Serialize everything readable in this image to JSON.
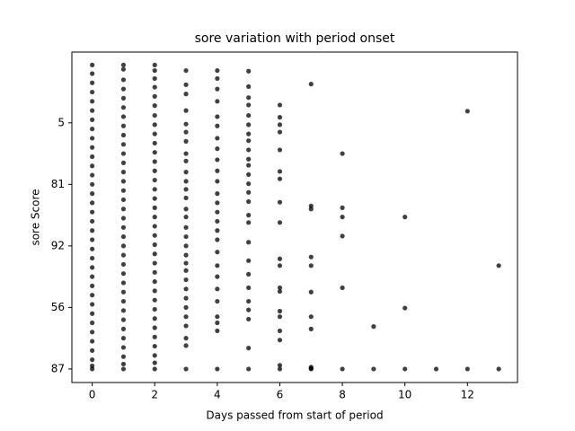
{
  "chart_data": {
    "type": "scatter",
    "title": "sore variation with period onset",
    "x_label": "Days passed from start of period",
    "y_label": "sore Score",
    "xlim": [
      -0.65,
      13.6
    ],
    "ylim": [
      -0.22,
      5.15
    ],
    "xticks": [
      0,
      2,
      4,
      6,
      8,
      10,
      12
    ],
    "yticks": [
      {
        "value": 0,
        "label": "87"
      },
      {
        "value": 1,
        "label": "56"
      },
      {
        "value": 2,
        "label": "92"
      },
      {
        "value": 3,
        "label": "81"
      },
      {
        "value": 4,
        "label": "5"
      }
    ],
    "series": [
      {
        "color": "#000000",
        "x": [
          0,
          0,
          0,
          0,
          0,
          0,
          0,
          0,
          0,
          0,
          0,
          0,
          0,
          0,
          0,
          0,
          0,
          0,
          0,
          0,
          0,
          0,
          0,
          0,
          0,
          0,
          0,
          0,
          0,
          0,
          0,
          0,
          0,
          0,
          0,
          1,
          1,
          1,
          1,
          1,
          1,
          1,
          1,
          1,
          1,
          1,
          1,
          1,
          1,
          1,
          1,
          1,
          1,
          1,
          1,
          1,
          1,
          1,
          1,
          1,
          1,
          1,
          1,
          1,
          1,
          1,
          1,
          1,
          1,
          1,
          2,
          2,
          2,
          2,
          2,
          2,
          2,
          2,
          2,
          2,
          2,
          2,
          2,
          2,
          2,
          2,
          2,
          2,
          2,
          2,
          2,
          2,
          2,
          2,
          2,
          2,
          2,
          2,
          2,
          2,
          2,
          2,
          2,
          2,
          2,
          3,
          3,
          3,
          3,
          3,
          3,
          3,
          3,
          3,
          3,
          3,
          3,
          3,
          3,
          3,
          3,
          3,
          3,
          3,
          3,
          3,
          3,
          3,
          3,
          3,
          3,
          3,
          3,
          3,
          3,
          4,
          4,
          4,
          4,
          4,
          4,
          4,
          4,
          4,
          4,
          4,
          4,
          4,
          4,
          4,
          4,
          4,
          4,
          4,
          4,
          4,
          4,
          4,
          4,
          4,
          4,
          5,
          5,
          5,
          5,
          5,
          5,
          5,
          5,
          5,
          5,
          5,
          5,
          5,
          5,
          5,
          5,
          5,
          5,
          5,
          5,
          5,
          5,
          5,
          5,
          5,
          5,
          6,
          6,
          6,
          6,
          6,
          6,
          6,
          6,
          6,
          6,
          6,
          6,
          6,
          6,
          6,
          6,
          6,
          6,
          6,
          7,
          7,
          7,
          7,
          7,
          7,
          7,
          7,
          7,
          7,
          7,
          8,
          8,
          8,
          8,
          8,
          8,
          9,
          9,
          10,
          10,
          10,
          11,
          12,
          12,
          13,
          13
        ],
        "values": [
          4.94,
          4.8,
          4.65,
          4.5,
          4.35,
          4.2,
          4.05,
          3.9,
          3.75,
          3.6,
          3.45,
          3.3,
          3.15,
          3.0,
          2.85,
          2.7,
          2.55,
          2.4,
          2.25,
          2.1,
          1.95,
          1.8,
          1.65,
          1.5,
          1.35,
          1.2,
          1.05,
          0.9,
          0.75,
          0.6,
          0.45,
          0.3,
          0.15,
          0.05,
          0,
          4.94,
          4.87,
          4.7,
          4.55,
          4.4,
          4.25,
          4.1,
          3.95,
          3.8,
          3.65,
          3.5,
          3.35,
          3.2,
          3.05,
          2.9,
          2.75,
          2.6,
          2.45,
          2.3,
          2.15,
          2.0,
          1.85,
          1.7,
          1.55,
          1.4,
          1.25,
          1.1,
          0.95,
          0.8,
          0.65,
          0.5,
          0.35,
          0.2,
          0.08,
          0,
          4.94,
          4.85,
          4.72,
          4.58,
          4.43,
          4.28,
          4.12,
          3.97,
          3.82,
          3.67,
          3.52,
          3.37,
          3.22,
          3.07,
          2.92,
          2.77,
          2.62,
          2.47,
          2.32,
          2.17,
          2.02,
          1.87,
          1.72,
          1.57,
          1.42,
          1.27,
          1.12,
          0.97,
          0.82,
          0.67,
          0.52,
          0.37,
          0.22,
          0.1,
          0,
          4.85,
          4.62,
          4.47,
          4.2,
          3.98,
          3.85,
          3.7,
          3.5,
          3.38,
          3.2,
          3.05,
          2.92,
          2.78,
          2.6,
          2.47,
          2.3,
          2.15,
          2.0,
          1.85,
          1.72,
          1.6,
          1.45,
          1.3,
          1.15,
          1.0,
          0.85,
          0.7,
          0.5,
          0.38,
          0,
          4.85,
          4.72,
          4.55,
          4.35,
          4.1,
          3.95,
          3.75,
          3.58,
          3.4,
          3.22,
          3.05,
          2.85,
          2.7,
          2.55,
          2.4,
          2.25,
          2.1,
          1.9,
          1.68,
          1.5,
          1.3,
          1.1,
          0.85,
          0.75,
          0.62,
          0,
          4.84,
          4.59,
          4.41,
          4.29,
          4.12,
          3.97,
          3.82,
          3.71,
          3.56,
          3.41,
          3.31,
          3.16,
          3.01,
          2.87,
          2.72,
          2.5,
          2.38,
          2.06,
          1.76,
          1.54,
          1.32,
          1.1,
          0.96,
          0.81,
          0.34,
          0,
          4.29,
          4.09,
          3.97,
          3.85,
          3.56,
          3.21,
          3.09,
          2.71,
          2.38,
          1.79,
          1.68,
          1.32,
          1.26,
          0.94,
          0.85,
          0.62,
          0.47,
          0.06,
          0,
          4.63,
          2.65,
          2.6,
          1.82,
          1.68,
          1.25,
          0.85,
          0.65,
          0.03,
          0,
          0.01,
          3.5,
          2.62,
          2.47,
          2.16,
          1.32,
          0,
          0.69,
          0,
          2.47,
          0.99,
          0,
          0,
          4.19,
          0,
          1.68,
          0
        ]
      }
    ]
  }
}
